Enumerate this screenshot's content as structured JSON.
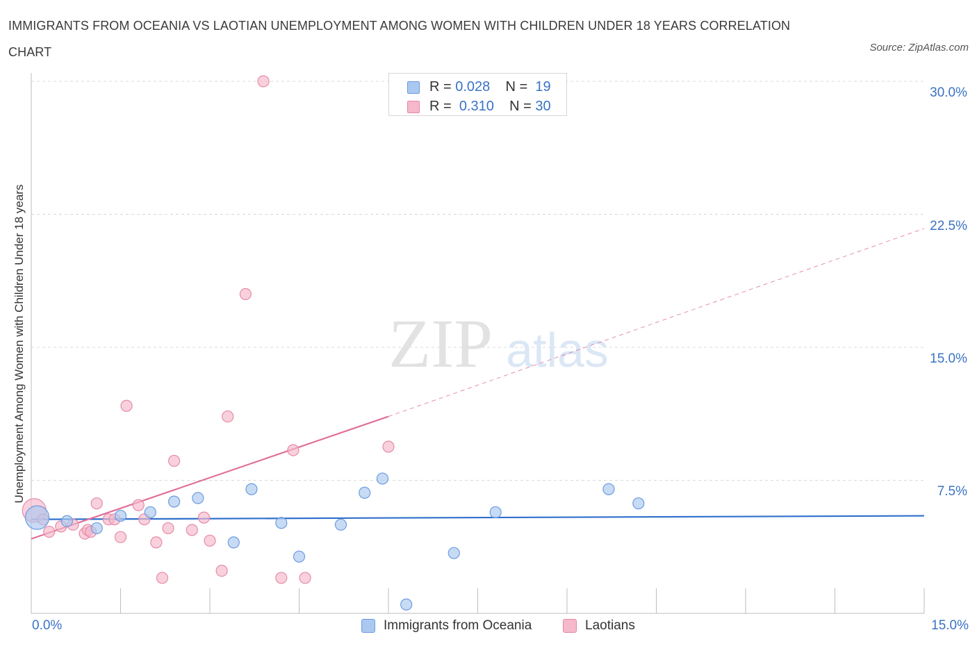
{
  "title": "IMMIGRANTS FROM OCEANIA VS LAOTIAN UNEMPLOYMENT AMONG WOMEN WITH CHILDREN UNDER 18 YEARS CORRELATION CHART",
  "source": "Source: ZipAtlas.com",
  "watermark": {
    "zip": "ZIP",
    "atlas": "atlas"
  },
  "legend": {
    "r_label": "R =",
    "n_label": "N =",
    "series1": {
      "r": "0.028",
      "n": "19"
    },
    "series2": {
      "r": "0.310",
      "n": "30"
    }
  },
  "colors": {
    "series1_fill": "#aac8f0",
    "series1_stroke": "#6b9be0",
    "series1_line": "#2f6fcc",
    "series2_fill": "#f6b8cb",
    "series2_stroke": "#e58aa6",
    "series2_line": "#e0709a",
    "axis_text": "#3a72c4",
    "grid": "#d8d8d8"
  },
  "chart_data": {
    "type": "scatter",
    "title": "IMMIGRANTS FROM OCEANIA VS LAOTIAN UNEMPLOYMENT AMONG WOMEN WITH CHILDREN UNDER 18 YEARS CORRELATION CHART",
    "xlabel": "",
    "ylabel": "Unemployment Among Women with Children Under 18 years",
    "xlim": [
      0,
      15
    ],
    "ylim": [
      0,
      30
    ],
    "x_tick_labels": [
      "0.0%",
      "15.0%"
    ],
    "y_ticks": [
      7.5,
      15.0,
      22.5,
      30.0
    ],
    "y_tick_labels": [
      "7.5%",
      "15.0%",
      "22.5%",
      "30.0%"
    ],
    "grid": true,
    "legend_position": "bottom-center",
    "series": [
      {
        "name": "Immigrants from Oceania",
        "r": 0.028,
        "n": 19,
        "points": [
          {
            "x": 0.1,
            "y": 5.4,
            "big": true
          },
          {
            "x": 0.6,
            "y": 5.2
          },
          {
            "x": 1.1,
            "y": 4.8
          },
          {
            "x": 1.5,
            "y": 5.5
          },
          {
            "x": 2.0,
            "y": 5.7
          },
          {
            "x": 2.4,
            "y": 6.3
          },
          {
            "x": 2.8,
            "y": 6.5
          },
          {
            "x": 3.4,
            "y": 4.0
          },
          {
            "x": 3.7,
            "y": 7.0
          },
          {
            "x": 4.2,
            "y": 5.1
          },
          {
            "x": 4.5,
            "y": 3.2
          },
          {
            "x": 5.2,
            "y": 5.0
          },
          {
            "x": 5.6,
            "y": 6.8
          },
          {
            "x": 5.9,
            "y": 7.6
          },
          {
            "x": 6.3,
            "y": 0.5
          },
          {
            "x": 7.1,
            "y": 3.4
          },
          {
            "x": 7.8,
            "y": 5.7
          },
          {
            "x": 9.7,
            "y": 7.0
          },
          {
            "x": 10.2,
            "y": 6.2
          }
        ],
        "trend": {
          "x1": 0.0,
          "y1": 5.3,
          "x2": 15.0,
          "y2": 5.5
        }
      },
      {
        "name": "Laotians",
        "r": 0.31,
        "n": 30,
        "points": [
          {
            "x": 0.05,
            "y": 5.8,
            "big": true
          },
          {
            "x": 0.2,
            "y": 5.3
          },
          {
            "x": 0.3,
            "y": 4.6
          },
          {
            "x": 0.5,
            "y": 4.9
          },
          {
            "x": 0.7,
            "y": 5.0
          },
          {
            "x": 0.9,
            "y": 4.5
          },
          {
            "x": 0.95,
            "y": 4.7
          },
          {
            "x": 1.0,
            "y": 4.6
          },
          {
            "x": 1.1,
            "y": 6.2
          },
          {
            "x": 1.3,
            "y": 5.3
          },
          {
            "x": 1.4,
            "y": 5.3
          },
          {
            "x": 1.5,
            "y": 4.3
          },
          {
            "x": 1.6,
            "y": 11.7
          },
          {
            "x": 1.8,
            "y": 6.1
          },
          {
            "x": 1.9,
            "y": 5.3
          },
          {
            "x": 2.1,
            "y": 4.0
          },
          {
            "x": 2.2,
            "y": 2.0
          },
          {
            "x": 2.3,
            "y": 4.8
          },
          {
            "x": 2.4,
            "y": 8.6
          },
          {
            "x": 2.7,
            "y": 4.7
          },
          {
            "x": 2.9,
            "y": 5.4
          },
          {
            "x": 3.0,
            "y": 4.1
          },
          {
            "x": 3.2,
            "y": 2.4
          },
          {
            "x": 3.3,
            "y": 11.1
          },
          {
            "x": 3.6,
            "y": 18.0
          },
          {
            "x": 3.9,
            "y": 30.0
          },
          {
            "x": 4.2,
            "y": 2.0
          },
          {
            "x": 4.4,
            "y": 9.2
          },
          {
            "x": 4.6,
            "y": 2.0
          },
          {
            "x": 6.0,
            "y": 9.4
          }
        ],
        "trend": {
          "x1": 0.0,
          "y1": 4.2,
          "x2": 6.0,
          "y2": 11.1
        },
        "trend_extension": {
          "x1": 6.0,
          "y1": 11.1,
          "x2": 15.0,
          "y2": 21.7
        }
      }
    ]
  },
  "bottom_legend": {
    "series1_label": "Immigrants from Oceania",
    "series2_label": "Laotians"
  }
}
